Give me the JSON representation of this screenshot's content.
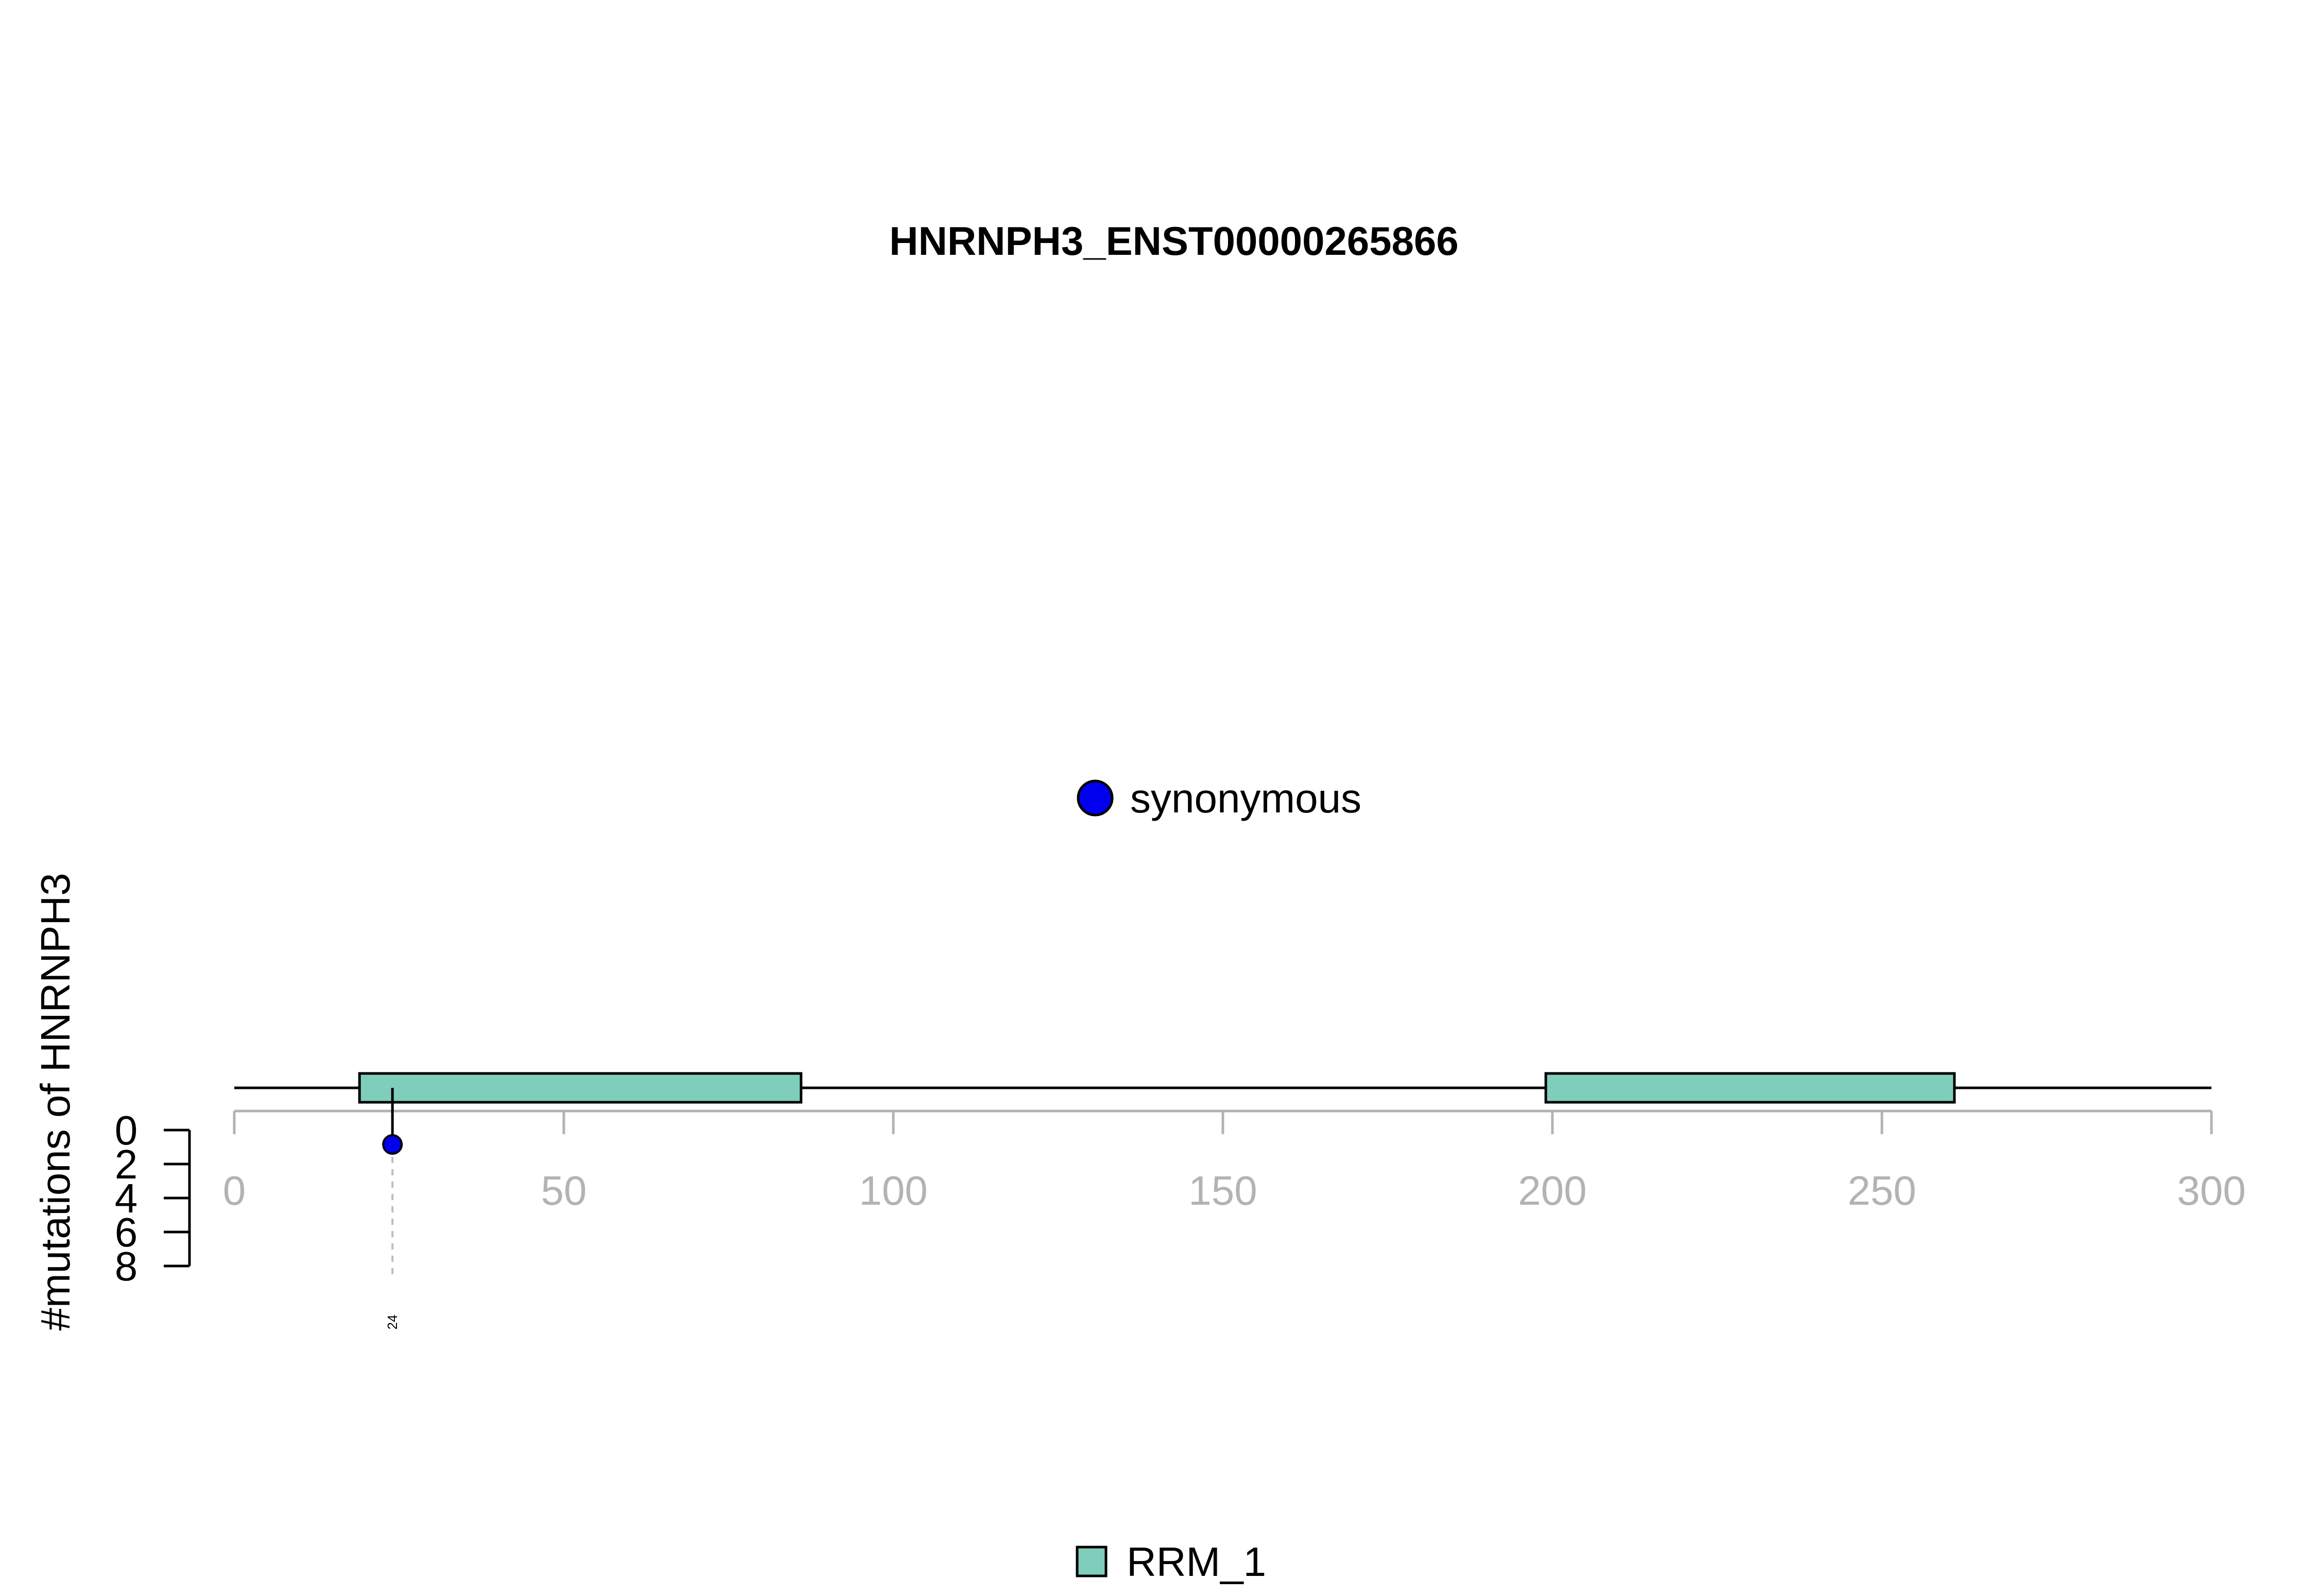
{
  "chart_data": {
    "type": "lollipop",
    "title": "HNRNPH3_ENST00000265866",
    "xlabel": "",
    "ylabel": "#mutations of HNRNPH3",
    "xlim": [
      0,
      300
    ],
    "x_ticks": [
      0,
      50,
      100,
      150,
      200,
      250,
      300
    ],
    "x_tick_labels": [
      "0",
      "50",
      "100",
      "150",
      "200",
      "250",
      "300"
    ],
    "y_ticks": [
      0,
      2,
      4,
      6,
      8
    ],
    "y_tick_labels": [
      "0",
      "2",
      "4",
      "6",
      "8"
    ],
    "protein_length": 300,
    "domains": [
      {
        "name": "RRM_1",
        "start": 19,
        "end": 86,
        "color": "#7fcdbb"
      },
      {
        "name": "RRM_1",
        "start": 199,
        "end": 261,
        "color": "#7fcdbb"
      }
    ],
    "mutations": [
      {
        "position": 24,
        "count": 1,
        "type": "synonymous",
        "color": "#0000ee",
        "label": "24"
      }
    ],
    "mutation_legend": [
      {
        "label": "synonymous",
        "color": "#0000ee"
      }
    ],
    "domain_legend": [
      {
        "label": "RRM_1",
        "color": "#7fcdbb"
      }
    ]
  }
}
